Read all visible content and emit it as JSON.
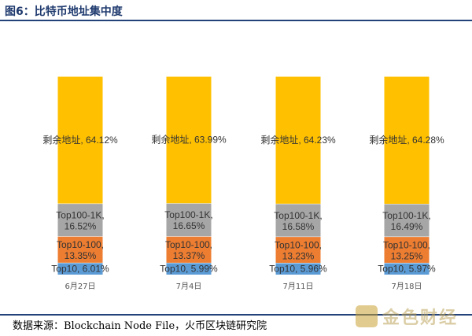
{
  "title": "图6：比特币地址集中度",
  "source": "数据来源：Blockchain Node File，火币区块链研究院",
  "watermark": "金色财经",
  "colors": {
    "remaining": "#FFC000",
    "top100_1k": "#A6A6A6",
    "top10_100": "#ED7D31",
    "top10": "#5B9BD5"
  },
  "chart_data": {
    "type": "bar",
    "stacked": true,
    "normalized": true,
    "categories": [
      "6月27日",
      "7月4日",
      "7月11日",
      "7月18日"
    ],
    "series": [
      {
        "name": "Top10",
        "key": "top10",
        "values": [
          6.01,
          5.99,
          5.96,
          5.97
        ],
        "labels": [
          "Top10, 6.01%",
          "Top10, 5.99%",
          "Top10, 5.96%",
          "Top10, 5.97%"
        ]
      },
      {
        "name": "Top10-100",
        "key": "top10_100",
        "values": [
          13.35,
          13.37,
          13.23,
          13.25
        ],
        "labels": [
          [
            "Top10-100,",
            "13.35%"
          ],
          [
            "Top10-100,",
            "13.37%"
          ],
          [
            "Top10-100,",
            "13.23%"
          ],
          [
            "Top10-100,",
            "13.25%"
          ]
        ]
      },
      {
        "name": "Top100-1K",
        "key": "top100_1k",
        "values": [
          16.52,
          16.65,
          16.58,
          16.49
        ],
        "labels": [
          [
            "Top100-1K,",
            "16.52%"
          ],
          [
            "Top100-1K,",
            "16.65%"
          ],
          [
            "Top100-1K,",
            "16.58%"
          ],
          [
            "Top100-1K,",
            "16.49%"
          ]
        ]
      },
      {
        "name": "剩余地址",
        "key": "remaining",
        "values": [
          64.12,
          63.99,
          64.23,
          64.28
        ],
        "labels": [
          "剩余地址, 64.12%",
          "剩余地址, 63.99%",
          "剩余地址, 64.23%",
          "剩余地址, 64.28%"
        ]
      }
    ],
    "ylim": [
      0,
      100
    ]
  }
}
